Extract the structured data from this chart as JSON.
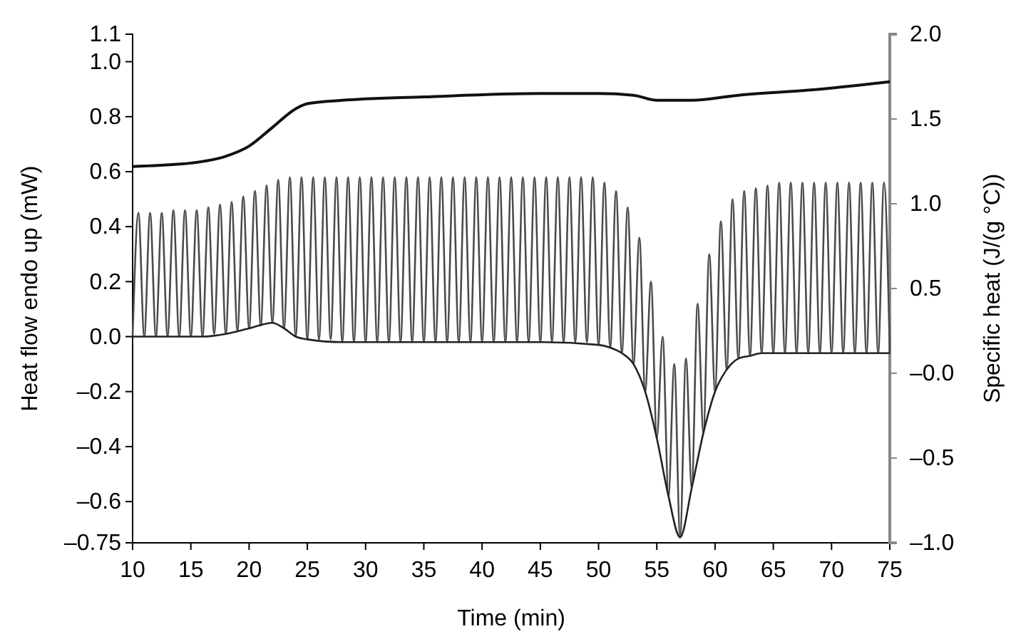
{
  "chart_data": {
    "type": "line",
    "xlabel": "Time (min)",
    "ylabel": "Heat flow endo up (mW)",
    "y2label": "Specific heat (J/(g °C))",
    "xlim": [
      10,
      75
    ],
    "xticks": [
      10,
      15,
      20,
      25,
      30,
      35,
      40,
      45,
      50,
      55,
      60,
      65,
      70,
      75
    ],
    "ylim": [
      -0.75,
      1.1
    ],
    "yticks": [
      {
        "value": -0.75,
        "label": "–0.75"
      },
      {
        "value": -0.6,
        "label": "–0.6"
      },
      {
        "value": -0.4,
        "label": "–0.4"
      },
      {
        "value": -0.2,
        "label": "–0.2"
      },
      {
        "value": 0,
        "label": "0.0"
      },
      0.2,
      0.4,
      0.6,
      0.8,
      {
        "value": 1,
        "label": "1.0"
      },
      1.1
    ],
    "y2lim": [
      -1,
      2
    ],
    "y2ticks": [
      {
        "value": -1,
        "label": "–1.0"
      },
      {
        "value": -0.5,
        "label": "–0.5"
      },
      {
        "value": 0,
        "label": "–0.0"
      },
      0.5,
      {
        "value": 1,
        "label": "1.0"
      },
      1.5,
      {
        "value": 2,
        "label": "2.0"
      }
    ],
    "marker": "none",
    "line_style": "solid",
    "series": [
      {
        "color": "#4a4a4a",
        "x": [
          10,
          10.5,
          11,
          11.5,
          12,
          12.5,
          13,
          13.5,
          14,
          14.5,
          15,
          15.5,
          16,
          16.5,
          17,
          17.5,
          18,
          18.5,
          19,
          19.5,
          20,
          20.5,
          21,
          21.5,
          22,
          22.5,
          23,
          23.5,
          24,
          24.5,
          25,
          25.5,
          26,
          26.5,
          27,
          27.5,
          28,
          28.5,
          29,
          29.5,
          30,
          30.5,
          31,
          31.5,
          32,
          32.5,
          33,
          33.5,
          34,
          34.5,
          35,
          35.5,
          36,
          36.5,
          37,
          37.5,
          38,
          38.5,
          39,
          39.5,
          40,
          40.5,
          41,
          41.5,
          42,
          42.5,
          43,
          43.5,
          44,
          44.5,
          45,
          45.5,
          46,
          46.5,
          47,
          47.5,
          48,
          48.5,
          49,
          49.5,
          50,
          50.5,
          51,
          51.5,
          52,
          52.5,
          53,
          53.5,
          54,
          54.5,
          55,
          55.5,
          56,
          56.5,
          57,
          57.5,
          58,
          58.5,
          59,
          59.5,
          60,
          60.5,
          61,
          61.5,
          62,
          62.5,
          63,
          63.5,
          64,
          64.5,
          65,
          65.5,
          66,
          66.5,
          67,
          67.5,
          68,
          68.5,
          69,
          69.5,
          70,
          70.5,
          71,
          71.5,
          72,
          72.5,
          73,
          73.5,
          74,
          74.5,
          75
        ],
        "values": [
          0,
          0.45,
          0,
          0.45,
          0,
          0.45,
          0,
          0.46,
          0,
          0.46,
          0,
          0.46,
          0,
          0.47,
          0.01,
          0.48,
          0.01,
          0.49,
          0.02,
          0.51,
          0.03,
          0.53,
          0.04,
          0.55,
          0.05,
          0.57,
          0.03,
          0.58,
          0,
          0.58,
          -0.01,
          0.58,
          -0.01,
          0.58,
          -0.01,
          0.58,
          -0.02,
          0.58,
          -0.02,
          0.58,
          -0.02,
          0.58,
          -0.02,
          0.58,
          -0.02,
          0.58,
          -0.02,
          0.58,
          -0.02,
          0.58,
          -0.02,
          0.58,
          -0.02,
          0.58,
          -0.02,
          0.58,
          -0.02,
          0.58,
          -0.02,
          0.58,
          -0.02,
          0.58,
          -0.02,
          0.58,
          -0.02,
          0.58,
          -0.02,
          0.58,
          -0.02,
          0.58,
          -0.02,
          0.58,
          -0.02,
          0.58,
          -0.02,
          0.58,
          -0.02,
          0.58,
          -0.02,
          0.58,
          -0.03,
          0.56,
          -0.04,
          0.53,
          -0.06,
          0.47,
          -0.1,
          0.36,
          -0.2,
          0.2,
          -0.37,
          0,
          -0.58,
          -0.1,
          -0.73,
          -0.08,
          -0.55,
          0.12,
          -0.35,
          0.3,
          -0.2,
          0.42,
          -0.12,
          0.5,
          -0.08,
          0.53,
          -0.07,
          0.54,
          -0.06,
          0.55,
          -0.06,
          0.56,
          -0.06,
          0.56,
          -0.06,
          0.56,
          -0.06,
          0.56,
          -0.06,
          0.56,
          -0.06,
          0.56,
          -0.06,
          0.56,
          -0.06,
          0.56,
          -0.06,
          0.56,
          -0.06,
          0.56,
          -0.06
        ]
      },
      {
        "color": "#222222",
        "x": [
          10,
          16,
          18,
          20,
          22,
          23,
          24,
          25,
          28,
          45,
          50,
          51,
          52,
          53,
          54,
          55,
          56,
          57,
          58,
          59,
          60,
          61,
          62,
          63,
          64,
          65,
          75
        ],
        "values": [
          0,
          0,
          0.01,
          0.03,
          0.05,
          0.03,
          0,
          -0.01,
          -0.02,
          -0.02,
          -0.03,
          -0.04,
          -0.06,
          -0.1,
          -0.2,
          -0.37,
          -0.58,
          -0.73,
          -0.55,
          -0.35,
          -0.2,
          -0.12,
          -0.08,
          -0.07,
          -0.06,
          -0.06,
          -0.06
        ]
      },
      {
        "color": "#111111",
        "axis": "y2",
        "x": [
          10,
          15,
          18,
          20,
          22,
          24,
          25,
          28,
          35,
          45,
          50,
          53,
          55,
          58,
          62,
          68,
          75
        ],
        "values": [
          1.22,
          1.24,
          1.28,
          1.34,
          1.45,
          1.56,
          1.59,
          1.61,
          1.63,
          1.65,
          1.65,
          1.64,
          1.61,
          1.61,
          1.64,
          1.67,
          1.72
        ]
      }
    ]
  }
}
